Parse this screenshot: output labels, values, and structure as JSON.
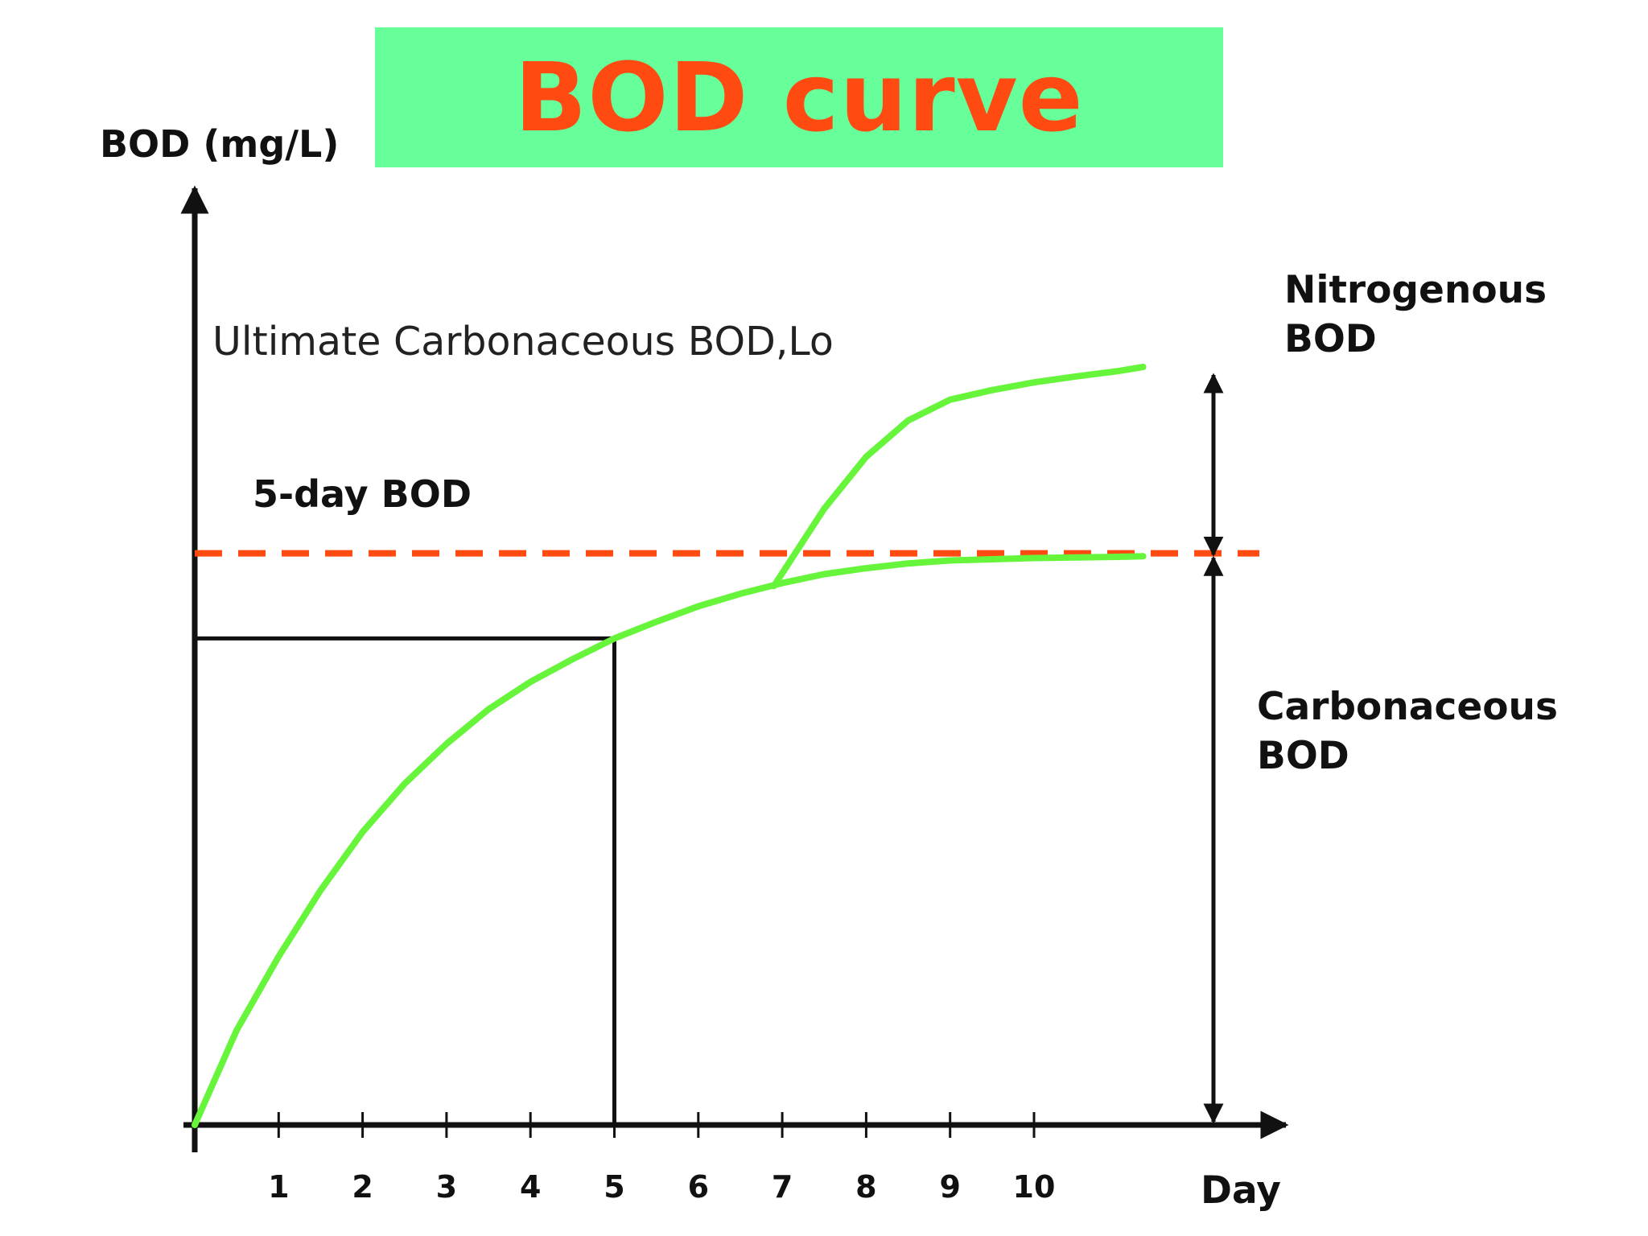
{
  "title": "BOD curve",
  "colors": {
    "banner": "#66ff99",
    "title_text": "#ff4a12",
    "curve": "#66f53a",
    "dashed_line": "#ff4a12",
    "axis": "#111111"
  },
  "chart_data": {
    "type": "line",
    "title": "BOD curve",
    "xlabel": "Day",
    "ylabel": "BOD (mg/L)",
    "x_ticks": [
      1,
      2,
      3,
      4,
      5,
      6,
      7,
      8,
      9,
      10
    ],
    "xlim": [
      0,
      11.3
    ],
    "ylim": [
      0,
      1
    ],
    "grid": false,
    "series": [
      {
        "x": [
          0,
          0.5,
          1,
          1.5,
          2,
          2.5,
          3,
          3.5,
          4,
          4.5,
          5,
          5.5,
          6,
          6.5,
          7,
          7.5,
          8,
          8.5,
          9,
          9.5,
          10,
          10.5,
          11,
          11.3
        ],
        "y": [
          0,
          0.159,
          0.283,
          0.394,
          0.492,
          0.573,
          0.64,
          0.698,
          0.744,
          0.782,
          0.817,
          0.845,
          0.871,
          0.892,
          0.91,
          0.925,
          0.935,
          0.943,
          0.948,
          0.95,
          0.952,
          0.953,
          0.954,
          0.955
        ]
      },
      {
        "x": [
          6.9,
          7.5,
          8,
          8.5,
          9,
          9.5,
          10,
          10.5,
          11,
          11.3
        ],
        "y": [
          0.905,
          1.035,
          1.122,
          1.183,
          1.218,
          1.234,
          1.247,
          1.257,
          1.266,
          1.273
        ]
      }
    ],
    "ultimate_carbonaceous_bod": 0.96,
    "five_day": {
      "day": 5,
      "bod": 0.817
    },
    "annotations": {
      "ultimate": "Ultimate Carbonaceous BOD,Lo",
      "five_day": "5-day BOD",
      "nitrogenous": [
        "Nitrogenous",
        "BOD"
      ],
      "carbonaceous": [
        "Carbonaceous",
        "BOD"
      ]
    }
  }
}
